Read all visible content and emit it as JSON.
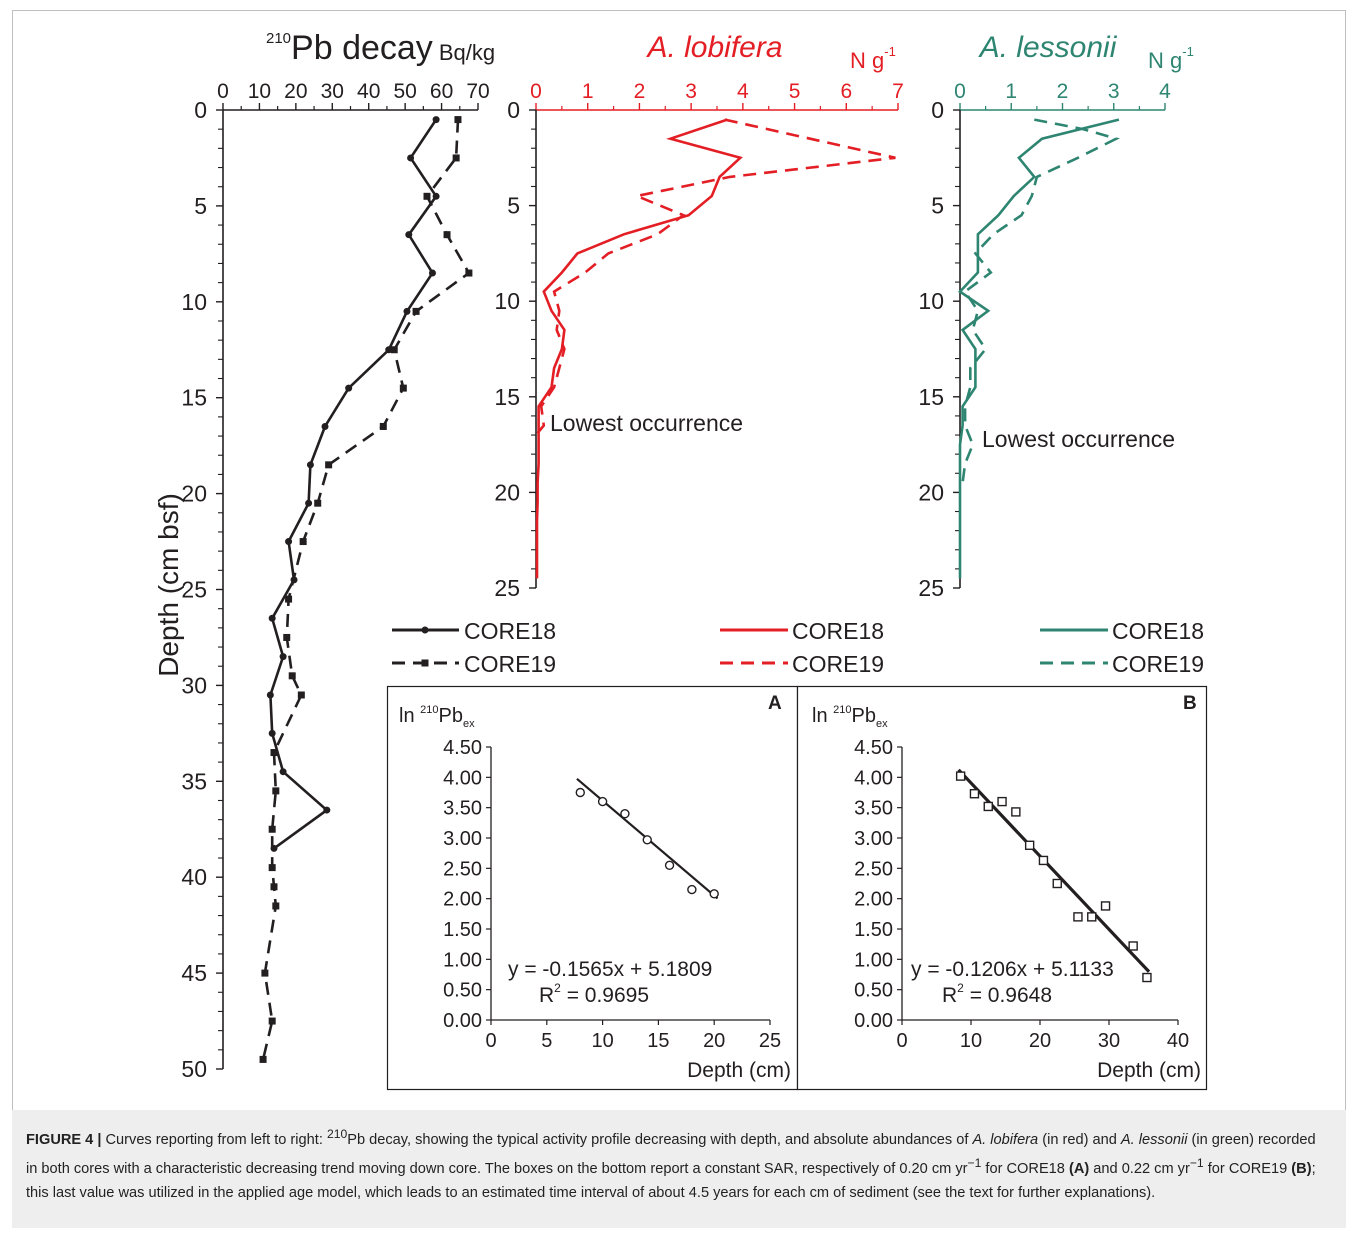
{
  "colors": {
    "black": "#231f20",
    "red": "#e31e24",
    "green": "#2e8571"
  },
  "shared_legend": {
    "solid_label": "CORE18",
    "dashed_label": "CORE19"
  },
  "caption": {
    "figure_label": "FIGURE 4 |",
    "text_1": " Curves reporting from left to right: ",
    "sup_210": "210",
    "text_2": "Pb decay, showing the typical activity profile decreasing with depth, and absolute abundances of ",
    "species_1": "A. lobifera",
    "text_3": " (in red) and ",
    "species_2": "A. lessonii",
    "text_4": " (in green) recorded in both cores with a characteristic decreasing trend moving down core. The boxes on the bottom report a constant SAR, respectively of 0.20 cm yr",
    "sup_m1a": "−1",
    "text_5": " for CORE18 ",
    "bold_a": "(A)",
    "text_6": " and 0.22 cm yr",
    "sup_m1b": "−1",
    "text_7": " for CORE19 ",
    "bold_b": "(B)",
    "text_8": "; this last value was utilized in the applied age model, which leads to an estimated time interval of about 4.5 years for each cm of sediment (see the text for further explanations)."
  },
  "chart_data": [
    {
      "type": "line",
      "title_sup": "210",
      "title": "Pb decay",
      "unit": "Bq/kg",
      "ylabel": "Depth (cm bsf)",
      "xlim": [
        0,
        70
      ],
      "ylim": [
        0,
        50
      ],
      "x_ticks": [
        0,
        10,
        20,
        30,
        40,
        50,
        60,
        70
      ],
      "y_ticks": [
        0,
        5,
        10,
        15,
        20,
        25,
        30,
        35,
        40,
        45,
        50
      ],
      "series": [
        {
          "name": "CORE18",
          "style": "solid-circle",
          "depth": [
            0.5,
            2.5,
            4.5,
            6.5,
            8.5,
            10.5,
            12.5,
            14.5,
            16.5,
            18.5,
            20.5,
            22.5,
            24.5,
            26.5,
            28.5,
            30.5,
            32.5,
            34.5,
            36.5,
            38.5
          ],
          "x": [
            58.5,
            51.5,
            58.5,
            51,
            57.5,
            50.5,
            45.5,
            34.5,
            28,
            24,
            23.5,
            18,
            19.5,
            13.5,
            16.5,
            13,
            13.5,
            16.5,
            28.5,
            14
          ]
        },
        {
          "name": "CORE19",
          "style": "dashed-square",
          "depth": [
            0.5,
            2.5,
            4.5,
            6.5,
            8.5,
            10.5,
            12.5,
            14.5,
            16.5,
            18.5,
            20.5,
            22.5,
            25.5,
            27.5,
            29.5,
            30.5,
            33.5,
            35.5,
            37.5,
            39.5,
            40.5,
            41.5,
            45.0,
            47.5,
            49.5
          ],
          "x": [
            64.5,
            64,
            56,
            61.5,
            67.5,
            53,
            47,
            49.5,
            44,
            29,
            26,
            22,
            18,
            17.5,
            19,
            21.5,
            14,
            14.5,
            13.5,
            13.5,
            14,
            14.5,
            11.5,
            13.5,
            11
          ]
        }
      ]
    },
    {
      "type": "line",
      "title": "A. lobifera",
      "unit": "N g",
      "unit_sup": "-1",
      "xlim": [
        0,
        7
      ],
      "ylim": [
        0,
        25
      ],
      "x_ticks": [
        0,
        1,
        2,
        3,
        4,
        5,
        6,
        7
      ],
      "y_ticks": [
        0,
        5,
        10,
        15,
        20,
        25
      ],
      "annotation": "Lowest occurrence",
      "series": [
        {
          "name": "CORE18",
          "style": "solid",
          "depth": [
            0.5,
            1.5,
            2.5,
            3.5,
            4.5,
            5.5,
            6.5,
            7.5,
            8.5,
            9.5,
            10.5,
            11.5,
            12.5,
            13.5,
            14.5,
            15.5,
            16.5,
            17.5,
            18.5,
            19.5,
            20.5,
            21.5,
            22.5,
            23.5,
            24.5
          ],
          "x": [
            3.7,
            2.6,
            3.95,
            3.55,
            3.4,
            2.95,
            1.7,
            0.8,
            0.5,
            0.15,
            0.3,
            0.55,
            0.5,
            0.35,
            0.3,
            0.05,
            0.05,
            0.05,
            0.05,
            0.03,
            0.03,
            0.02,
            0.02,
            0.02,
            0.02
          ]
        },
        {
          "name": "CORE19",
          "style": "dashed",
          "depth": [
            0.5,
            2.5,
            3.5,
            4.5,
            5.5,
            6.5,
            7.5,
            8.5,
            9.5,
            10.5,
            11.5,
            12.5,
            13.5,
            14.5,
            15.5,
            16.5,
            17.0
          ],
          "x": [
            3.65,
            6.95,
            3.75,
            1.95,
            2.85,
            2.35,
            1.4,
            0.95,
            0.35,
            0.45,
            0.4,
            0.55,
            0.45,
            0.35,
            0.1,
            0.15,
            0.0
          ]
        }
      ]
    },
    {
      "type": "line",
      "title": "A. lessonii",
      "unit": "N g",
      "unit_sup": "-1",
      "xlim": [
        0,
        4
      ],
      "ylim": [
        0,
        25
      ],
      "x_ticks": [
        0,
        1,
        2,
        3,
        4
      ],
      "y_ticks": [
        0,
        5,
        10,
        15,
        20,
        25
      ],
      "annotation": "Lowest occurrence",
      "series": [
        {
          "name": "CORE18",
          "style": "solid",
          "depth": [
            0.5,
            1.5,
            2.5,
            3.5,
            4.5,
            5.5,
            6.5,
            7.5,
            8.5,
            9.5,
            10.5,
            11.5,
            12.5,
            13.5,
            14.5,
            15.5,
            16.5,
            17.5,
            18.5,
            19.5,
            20.5,
            21.5,
            22.5,
            23.5,
            24.5
          ],
          "x": [
            3.1,
            1.6,
            1.15,
            1.45,
            1.05,
            0.75,
            0.35,
            0.35,
            0.35,
            0.0,
            0.55,
            0.05,
            0.3,
            0.3,
            0.3,
            0.05,
            0.05,
            0.0,
            0.0,
            0.0,
            0.0,
            0.0,
            0.0,
            0.0,
            0.0
          ]
        },
        {
          "name": "CORE19",
          "style": "dashed",
          "depth": [
            0.5,
            1.0,
            1.5,
            2.5,
            3.5,
            4.5,
            5.5,
            6.5,
            7.5,
            8.5,
            9.5,
            10.5,
            11.5,
            12.5,
            13.5,
            14.5,
            15.5,
            16.5,
            17.5,
            18.5,
            19.5
          ],
          "x": [
            1.45,
            2.4,
            3.05,
            2.3,
            1.5,
            1.4,
            1.2,
            0.65,
            0.3,
            0.6,
            0.1,
            0.35,
            0.25,
            0.5,
            0.2,
            0.2,
            0.1,
            0.1,
            0.25,
            0.1,
            0.05
          ]
        }
      ]
    },
    {
      "type": "scatter",
      "panel_label": "A",
      "ylabel_prefix": "ln ",
      "ylabel_sup": "210",
      "ylabel_main": "Pb",
      "ylabel_sub": "ex",
      "xlabel": "Depth (cm)",
      "xlim": [
        0,
        25
      ],
      "ylim": [
        0,
        4.5
      ],
      "x_ticks": [
        0,
        5,
        10,
        15,
        20,
        25
      ],
      "y_ticks": [
        "0.00",
        "0.50",
        "1.00",
        "1.50",
        "2.00",
        "2.50",
        "3.00",
        "3.50",
        "4.00",
        "4.50"
      ],
      "marker": "circle",
      "x": [
        8,
        10,
        12,
        14,
        16,
        18,
        20
      ],
      "y": [
        3.75,
        3.6,
        3.4,
        2.97,
        2.55,
        2.15,
        2.08
      ],
      "fit": {
        "slope": -0.1565,
        "intercept": 5.1809,
        "x_range": [
          8,
          20
        ]
      },
      "equation": "y = -0.1565x + 5.1809",
      "r2_prefix": "R",
      "r2_sup": "2",
      "r2_value": " = 0.9695"
    },
    {
      "type": "scatter",
      "panel_label": "B",
      "ylabel_prefix": "ln ",
      "ylabel_sup": "210",
      "ylabel_main": "Pb",
      "ylabel_sub": "ex",
      "xlabel": "Depth (cm)",
      "xlim": [
        0,
        40
      ],
      "ylim": [
        0,
        4.5
      ],
      "x_ticks": [
        0,
        10,
        20,
        30,
        40
      ],
      "y_ticks": [
        "0.00",
        "0.50",
        "1.00",
        "1.50",
        "2.00",
        "2.50",
        "3.00",
        "3.50",
        "4.00",
        "4.50"
      ],
      "marker": "square",
      "x": [
        8.5,
        10.5,
        12.5,
        14.5,
        16.5,
        18.5,
        20.5,
        22.5,
        25.5,
        27.5,
        29.5,
        33.5,
        35.5
      ],
      "y": [
        4.02,
        3.73,
        3.52,
        3.6,
        3.43,
        2.88,
        2.63,
        2.25,
        1.7,
        1.7,
        1.88,
        1.22,
        0.7
      ],
      "fit": {
        "slope": -0.1206,
        "intercept": 5.1133,
        "x_range": [
          8.5,
          35.5
        ]
      },
      "equation": "y = -0.1206x + 5.1133",
      "r2_prefix": "R",
      "r2_sup": "2",
      "r2_value": " = 0.9648"
    }
  ]
}
